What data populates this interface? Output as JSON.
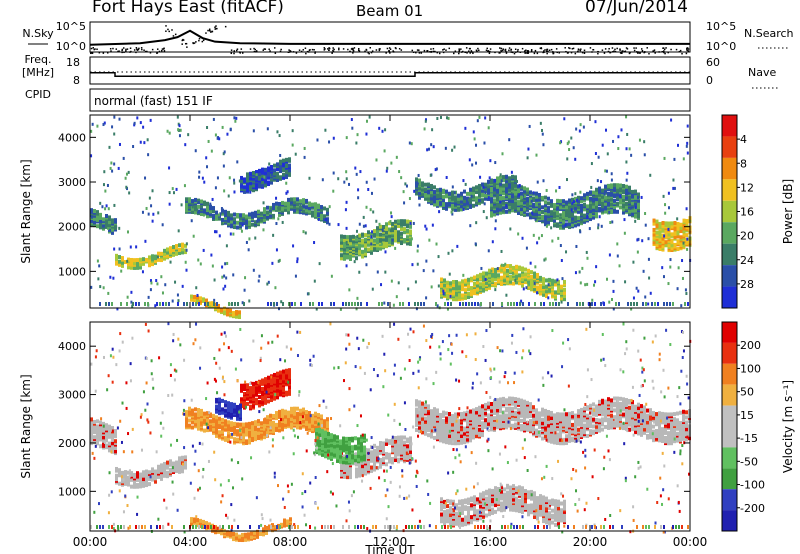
{
  "header": {
    "station": "Fort Hays East (fitACF)",
    "beam": "Beam 01",
    "date": "07/Jun/2014"
  },
  "strip_labels": {
    "nsky": "N.Sky",
    "nsky_ticks": [
      "10^5",
      "10^0"
    ],
    "nsearch": "N.Search",
    "nsearch_ticks": [
      "10^5",
      "10^0"
    ],
    "freq_title": "Freq.",
    "freq_unit": "[MHz]",
    "freq_ticks": [
      "18",
      "8"
    ],
    "nave": "Nave",
    "nave_ticks": [
      "60",
      "0"
    ],
    "cpid": "CPID",
    "mode": "normal (fast) 151 IF"
  },
  "colors": {
    "power": [
      "#1f2fd6",
      "#2a4fa8",
      "#3a7d68",
      "#5aa860",
      "#a8c83a",
      "#f0c020",
      "#f08a10",
      "#e84010",
      "#e01010"
    ],
    "velocity": [
      "#2020b0",
      "#3040c0",
      "#40a040",
      "#60c060",
      "#c0c0c0",
      "#c0c0c0",
      "#f0b040",
      "#f08020",
      "#e83010",
      "#e00000"
    ],
    "ground_scatter": "#b8b8b8"
  },
  "chart_data": [
    {
      "type": "line",
      "name": "sounding strip",
      "x_hours": [
        0,
        2,
        3,
        3.5,
        4,
        4.5,
        5,
        6,
        8,
        12,
        16,
        20,
        24
      ],
      "series": [
        {
          "name": "N.Sky",
          "values": [
            10,
            20,
            80,
            300,
            5000,
            200,
            40,
            20,
            15,
            15,
            15,
            15,
            15
          ]
        },
        {
          "name": "N.Search",
          "values": [
            10,
            12,
            15,
            18,
            30,
            18,
            15,
            12,
            12,
            12,
            12,
            12,
            12
          ]
        }
      ],
      "ylim": [
        1,
        100000
      ],
      "scale": "log"
    },
    {
      "type": "line",
      "name": "frequency / nave strip",
      "x_steps": [
        0,
        1,
        13,
        24
      ],
      "series": [
        {
          "name": "Freq.",
          "values": [
            12,
            10.5,
            12
          ]
        },
        {
          "name": "Nave",
          "values": [
            12,
            12,
            12
          ]
        }
      ],
      "ylim_freq": [
        8,
        18
      ],
      "ylim_nave": [
        0,
        60
      ]
    },
    {
      "type": "heatmap",
      "name": "power",
      "xlabel": "",
      "ylabel": "Slant Range [km]",
      "xlim": [
        0,
        24
      ],
      "ylim": [
        180,
        4500
      ],
      "yticks": [
        "1000",
        "2000",
        "3000",
        "4000"
      ],
      "colorbar_title": "Power [dB]",
      "colorbar_ticks": [
        "4",
        "8",
        "12",
        "16",
        "20",
        "24",
        "28"
      ],
      "features": [
        {
          "x": [
            0,
            1
          ],
          "y": [
            1950,
            2300
          ],
          "level": 12
        },
        {
          "x": [
            1,
            3.8
          ],
          "y": [
            1300,
            1500
          ],
          "level": 20
        },
        {
          "x": [
            3.8,
            9.5
          ],
          "y": [
            2200,
            2500
          ],
          "level": 10
        },
        {
          "x": [
            4,
            6
          ],
          "y": [
            200,
            320
          ],
          "level": 24
        },
        {
          "x": [
            6,
            8
          ],
          "y": [
            3000,
            3400
          ],
          "level": 8
        },
        {
          "x": [
            10,
            12.8
          ],
          "y": [
            1500,
            2000
          ],
          "level": 14
        },
        {
          "x": [
            13,
            17
          ],
          "y": [
            2600,
            3000
          ],
          "level": 12
        },
        {
          "x": [
            14,
            19
          ],
          "y": [
            600,
            1000
          ],
          "level": 20
        },
        {
          "x": [
            16,
            22
          ],
          "y": [
            2200,
            2800
          ],
          "level": 10
        },
        {
          "x": [
            22.5,
            24
          ],
          "y": [
            1700,
            2300
          ],
          "level": 22
        }
      ]
    },
    {
      "type": "heatmap",
      "name": "velocity",
      "xlabel": "Time UT",
      "ylabel": "Slant Range [km]",
      "xlim": [
        0,
        24
      ],
      "ylim": [
        180,
        4500
      ],
      "xticks": [
        "00:00",
        "04:00",
        "08:00",
        "12:00",
        "16:00",
        "20:00",
        "00:00"
      ],
      "yticks": [
        "1000",
        "2000",
        "3000",
        "4000"
      ],
      "colorbar_title": "Velocity [m s⁻¹]",
      "colorbar_ticks": [
        "200",
        "100",
        "50",
        "15",
        "-15",
        "-50",
        "-100",
        "-200"
      ],
      "features": [
        {
          "x": [
            0,
            1
          ],
          "y": [
            1900,
            2400
          ],
          "level": 0
        },
        {
          "x": [
            1,
            3.8
          ],
          "y": [
            1300,
            1600
          ],
          "level": 0
        },
        {
          "x": [
            3.8,
            9.5
          ],
          "y": [
            2200,
            2600
          ],
          "level": -40
        },
        {
          "x": [
            6,
            8
          ],
          "y": [
            2900,
            3400
          ],
          "level": -180
        },
        {
          "x": [
            5,
            6
          ],
          "y": [
            2700,
            3000
          ],
          "level": 180
        },
        {
          "x": [
            10,
            12.8
          ],
          "y": [
            1500,
            2000
          ],
          "level": 0
        },
        {
          "x": [
            9,
            11
          ],
          "y": [
            1800,
            2300
          ],
          "level": 40
        },
        {
          "x": [
            13,
            24
          ],
          "y": [
            2200,
            2800
          ],
          "level": 0
        },
        {
          "x": [
            14,
            19
          ],
          "y": [
            500,
            1000
          ],
          "level": 0
        },
        {
          "x": [
            4,
            8
          ],
          "y": [
            200,
            320
          ],
          "level": -60
        }
      ]
    }
  ]
}
